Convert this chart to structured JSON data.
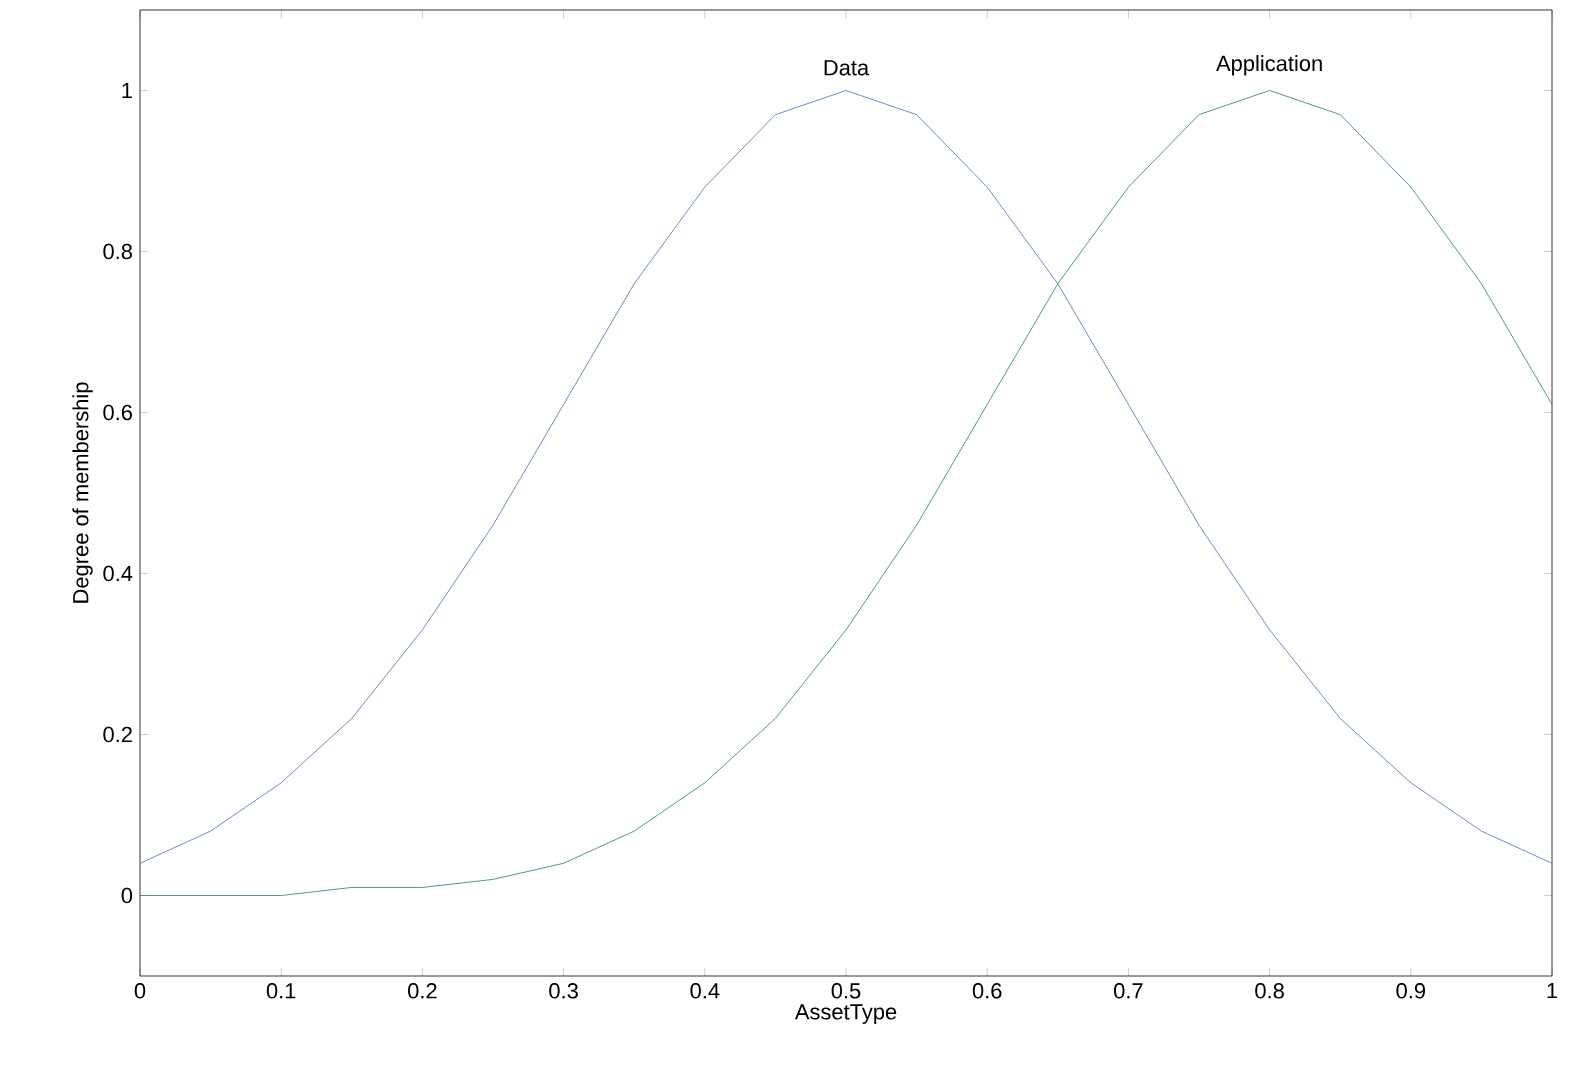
{
  "chart_data": {
    "type": "line",
    "xlabel": "AssetType",
    "ylabel": "Degree of membership",
    "x": [
      0,
      0.05,
      0.1,
      0.15,
      0.2,
      0.25,
      0.3,
      0.35,
      0.4,
      0.45,
      0.5,
      0.55,
      0.6,
      0.65,
      0.7,
      0.75,
      0.8,
      0.85,
      0.9,
      0.95,
      1
    ],
    "series": [
      {
        "color": "#4a6cc8",
        "values": [
          0.04,
          0.08,
          0.14,
          0.22,
          0.33,
          0.46,
          0.61,
          0.76,
          0.88,
          0.97,
          1,
          0.97,
          0.88,
          0.76,
          0.61,
          0.46,
          0.33,
          0.22,
          0.14,
          0.08,
          0.04
        ]
      },
      {
        "color": "#1f8a46",
        "values": [
          0,
          0,
          0,
          0.01,
          0.01,
          0.02,
          0.04,
          0.08,
          0.14,
          0.22,
          0.33,
          0.46,
          0.61,
          0.76,
          0.88,
          0.97,
          1,
          0.97,
          0.88,
          0.76,
          0.61
        ]
      }
    ],
    "annotations": [
      {
        "text": "Data",
        "x": 0.5,
        "y": 1
      },
      {
        "text": "Application",
        "x": 0.8,
        "y": 1
      }
    ],
    "xlim": [
      0,
      1
    ],
    "ylim": [
      -0.1,
      1.1
    ],
    "xticks": [
      0,
      0.1,
      0.2,
      0.3,
      0.4,
      0.5,
      0.6,
      0.7,
      0.8,
      0.9,
      1
    ],
    "yticks": [
      0,
      0.2,
      0.4,
      0.6,
      0.8,
      1
    ],
    "grid": false,
    "marker": "none",
    "line_style": "solid"
  }
}
